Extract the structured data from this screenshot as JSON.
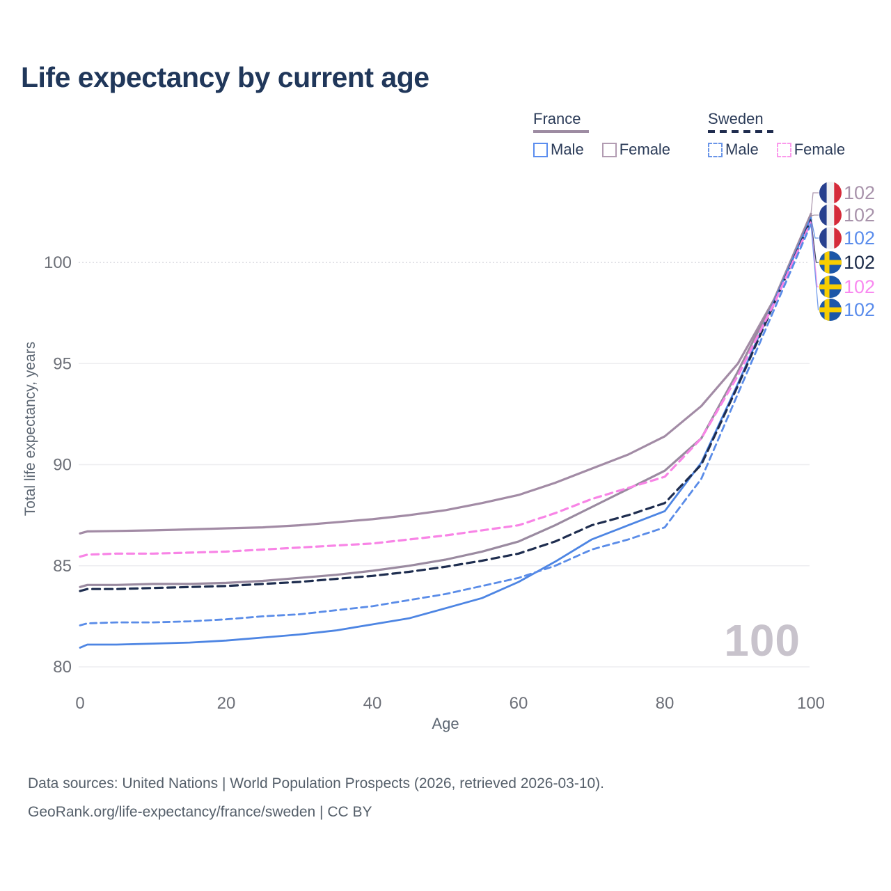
{
  "header": {
    "title": "Life expectancy by current age"
  },
  "legend": {
    "groups": [
      {
        "label": "France",
        "line_style": "solid",
        "line_color": "#9d8ba2",
        "items": [
          {
            "label": "Male",
            "color": "#5b8def",
            "dashed": false
          },
          {
            "label": "Female",
            "color": "#b29cb2",
            "dashed": false
          }
        ]
      },
      {
        "label": "Sweden",
        "line_style": "dashed",
        "line_color": "#1f2c4e",
        "items": [
          {
            "label": "Male",
            "color": "#6a95e8",
            "dashed": true
          },
          {
            "label": "Female",
            "color": "#fb9aec",
            "dashed": true
          }
        ]
      }
    ]
  },
  "chart_data": {
    "type": "line",
    "title": "Life expectancy by current age",
    "xlabel": "Age",
    "ylabel": "Total life expectancy, years",
    "xlim": [
      0,
      100
    ],
    "ylim": [
      79.5,
      103
    ],
    "xticks": [
      0,
      20,
      40,
      60,
      80,
      100
    ],
    "yticks": [
      80,
      85,
      90,
      95,
      100
    ],
    "grid": "horizontal",
    "legend_position": "top-right",
    "watermark": "100",
    "x": [
      0,
      1,
      5,
      10,
      15,
      20,
      25,
      30,
      35,
      40,
      45,
      50,
      55,
      60,
      65,
      70,
      75,
      80,
      85,
      90,
      95,
      100
    ],
    "series": [
      {
        "name": "France Female",
        "country": "France",
        "sex": "Female",
        "color": "#a28ba5",
        "dash": null,
        "width": 3.2,
        "values": [
          86.6,
          86.7,
          86.72,
          86.75,
          86.8,
          86.85,
          86.9,
          87.0,
          87.15,
          87.3,
          87.5,
          87.75,
          88.1,
          88.5,
          89.1,
          89.8,
          90.5,
          91.4,
          92.9,
          95.0,
          98.2,
          102.4
        ]
      },
      {
        "name": "France (both sexes)",
        "country": "France",
        "sex": "All",
        "color": "#9a8aa0",
        "dash": null,
        "width": 3.2,
        "values": [
          83.95,
          84.05,
          84.05,
          84.1,
          84.1,
          84.15,
          84.25,
          84.4,
          84.55,
          84.75,
          85.0,
          85.3,
          85.7,
          86.2,
          87.0,
          87.9,
          88.8,
          89.7,
          91.3,
          94.6,
          98.2,
          102.3
        ]
      },
      {
        "name": "France Male",
        "country": "France",
        "sex": "Male",
        "color": "#4d85e3",
        "dash": null,
        "width": 2.8,
        "values": [
          80.95,
          81.1,
          81.1,
          81.15,
          81.2,
          81.3,
          81.45,
          81.6,
          81.8,
          82.1,
          82.4,
          82.9,
          83.4,
          84.2,
          85.2,
          86.3,
          87.0,
          87.7,
          90.1,
          94.0,
          98.1,
          102.2
        ]
      },
      {
        "name": "Sweden (both sexes)",
        "country": "Sweden",
        "sex": "All",
        "color": "#1e2d4f",
        "dash": "11,7",
        "width": 3.2,
        "values": [
          83.75,
          83.85,
          83.85,
          83.9,
          83.95,
          84.0,
          84.1,
          84.2,
          84.35,
          84.5,
          84.7,
          84.95,
          85.25,
          85.6,
          86.2,
          87.0,
          87.5,
          88.1,
          90.0,
          93.9,
          98.0,
          102.1
        ]
      },
      {
        "name": "Sweden Female",
        "country": "Sweden",
        "sex": "Female",
        "color": "#f884e6",
        "dash": "10,7",
        "width": 3.2,
        "values": [
          85.45,
          85.55,
          85.6,
          85.6,
          85.65,
          85.7,
          85.8,
          85.9,
          86.0,
          86.1,
          86.3,
          86.5,
          86.75,
          87.0,
          87.6,
          88.3,
          88.85,
          89.4,
          91.3,
          94.4,
          98.0,
          102.0
        ]
      },
      {
        "name": "Sweden Male",
        "country": "Sweden",
        "sex": "Male",
        "color": "#5a8ce8",
        "dash": "9,6",
        "width": 2.8,
        "values": [
          82.05,
          82.15,
          82.2,
          82.2,
          82.25,
          82.35,
          82.5,
          82.6,
          82.8,
          83.0,
          83.3,
          83.6,
          84.0,
          84.4,
          85.0,
          85.8,
          86.3,
          86.9,
          89.3,
          93.5,
          97.7,
          101.9
        ]
      }
    ],
    "end_labels": [
      {
        "series": "France Female",
        "flag": "france",
        "value": "102",
        "color": "#a893ab"
      },
      {
        "series": "France (both sexes)",
        "flag": "france",
        "value": "102",
        "color": "#a893ab"
      },
      {
        "series": "France Male",
        "flag": "france",
        "value": "102",
        "color": "#5a8cec"
      },
      {
        "series": "Sweden (both sexes)",
        "flag": "sweden",
        "value": "102",
        "color": "#1c2b49"
      },
      {
        "series": "Sweden Female",
        "flag": "sweden",
        "value": "102",
        "color": "#f98af0"
      },
      {
        "series": "Sweden Male",
        "flag": "sweden",
        "value": "102",
        "color": "#5a8cec"
      }
    ],
    "flag_colors": {
      "france_blue": "#28408e",
      "france_white": "#f2f2f2",
      "france_red": "#d52b3a",
      "sweden_blue": "#1c57a8",
      "sweden_yellow": "#f8ce00"
    },
    "axis_colors": {
      "tick_label": "#6d7078",
      "gridline": "#ededf0",
      "gridline_dotted": "#d9d9df"
    }
  },
  "footer": {
    "line1": "Data sources: United Nations | World Population Prospects (2026, retrieved 2026-03-10).",
    "line2": "GeoRank.org/life-expectancy/france/sweden | CC BY"
  }
}
